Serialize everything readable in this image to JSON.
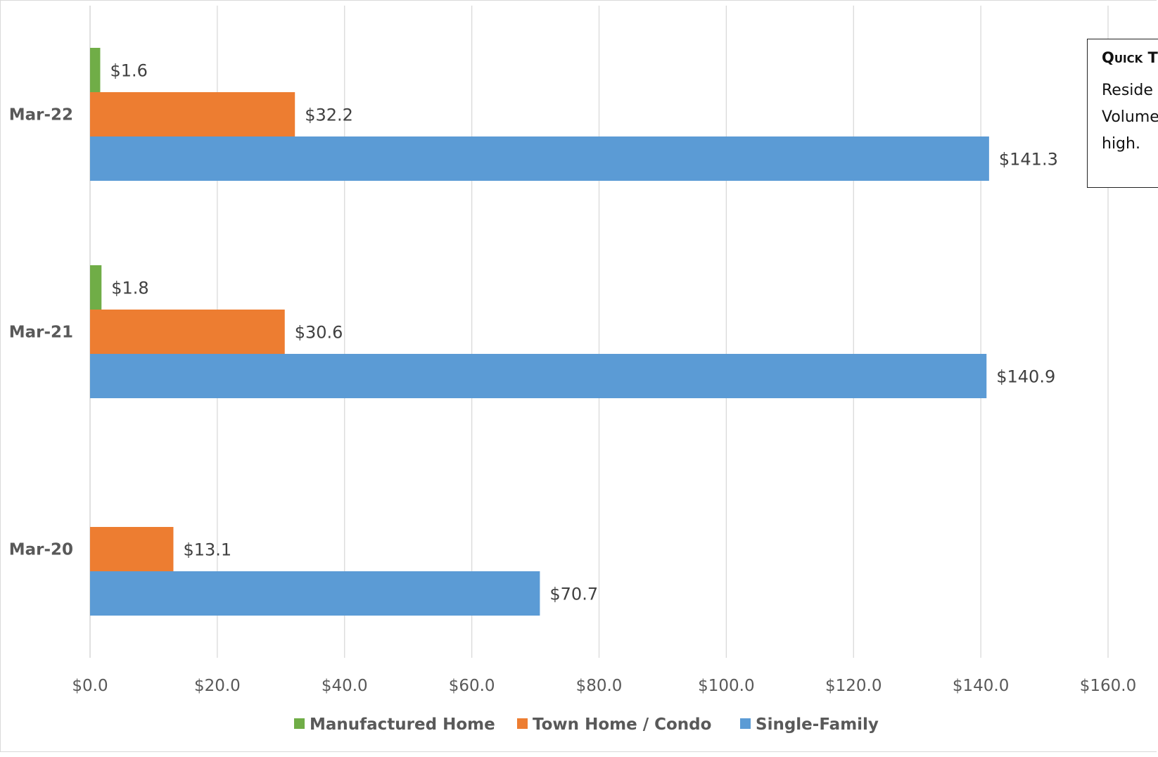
{
  "chart_data": {
    "type": "bar",
    "orientation": "horizontal",
    "categories": [
      "Mar-20",
      "Mar-21",
      "Mar-22"
    ],
    "series": [
      {
        "name": "Manufactured Home",
        "color": "#70ad47",
        "values": [
          null,
          1.8,
          1.6
        ],
        "labels": [
          null,
          "$1.8",
          "$1.6"
        ]
      },
      {
        "name": "Town Home / Condo",
        "color": "#ed7d31",
        "values": [
          13.1,
          30.6,
          32.2
        ],
        "labels": [
          "$13.1",
          "$30.6",
          "$32.2"
        ]
      },
      {
        "name": "Single-Family",
        "color": "#5b9bd5",
        "values": [
          70.7,
          140.9,
          141.3
        ],
        "labels": [
          "$70.7",
          "$140.9",
          "$141.3"
        ]
      }
    ],
    "xlim": [
      0,
      160
    ],
    "x_ticks": [
      0,
      20,
      40,
      60,
      80,
      100,
      120,
      140,
      160
    ],
    "x_tick_labels": [
      "$0.0",
      "$20.0",
      "$40.0",
      "$60.0",
      "$80.0",
      "$100.0",
      "$120.0",
      "$140.0",
      "$160.0"
    ],
    "grid": true,
    "legend_position": "bottom",
    "title": "",
    "xlabel": "",
    "ylabel": ""
  },
  "quick_takes": {
    "title": "Quick T",
    "lines": [
      "Reside",
      "Volume",
      "high."
    ]
  }
}
